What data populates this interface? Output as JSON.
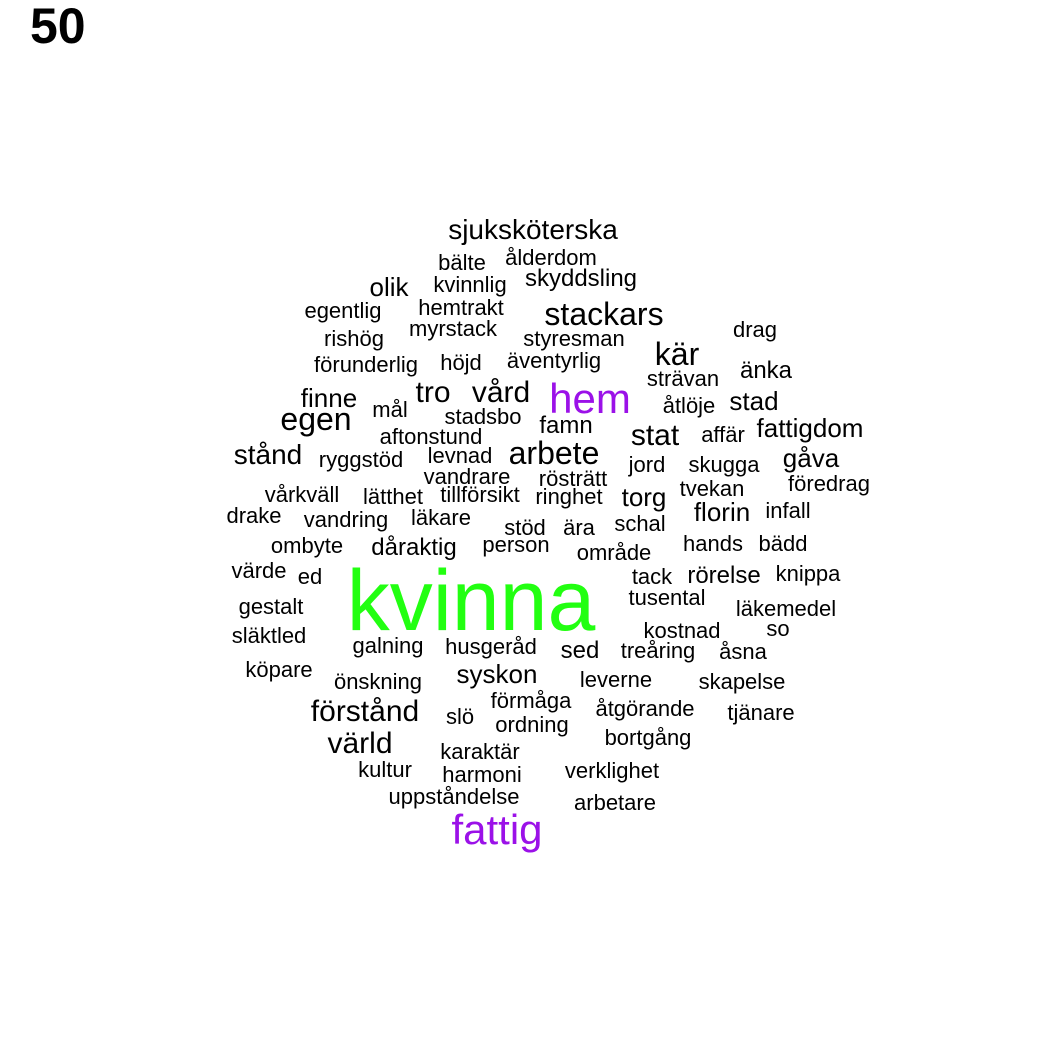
{
  "title": "50",
  "colors": {
    "highlight_green": "#22ff11",
    "highlight_purple": "#9b11e8",
    "default": "#000000"
  },
  "words": [
    {
      "text": "sjuksköterska",
      "size": "m"
    },
    {
      "text": "ålderdom",
      "size": "s"
    },
    {
      "text": "bälte",
      "size": "s"
    },
    {
      "text": "skyddsling",
      "size": "s"
    },
    {
      "text": "olik",
      "size": "m"
    },
    {
      "text": "kvinnlig",
      "size": "s"
    },
    {
      "text": "egentlig",
      "size": "s"
    },
    {
      "text": "hemtrakt",
      "size": "s"
    },
    {
      "text": "stackars",
      "size": "l"
    },
    {
      "text": "drag",
      "size": "s"
    },
    {
      "text": "rishög",
      "size": "s"
    },
    {
      "text": "myrstack",
      "size": "s"
    },
    {
      "text": "styresman",
      "size": "s"
    },
    {
      "text": "kär",
      "size": "l"
    },
    {
      "text": "förunderlig",
      "size": "s"
    },
    {
      "text": "höjd",
      "size": "s"
    },
    {
      "text": "äventyrlig",
      "size": "s"
    },
    {
      "text": "änka",
      "size": "m"
    },
    {
      "text": "strävan",
      "size": "s"
    },
    {
      "text": "finne",
      "size": "m"
    },
    {
      "text": "tro",
      "size": "l"
    },
    {
      "text": "vård",
      "size": "l"
    },
    {
      "text": "hem",
      "size": "xl",
      "color": "purple"
    },
    {
      "text": "stad",
      "size": "m"
    },
    {
      "text": "mål",
      "size": "s"
    },
    {
      "text": "åtlöje",
      "size": "s"
    },
    {
      "text": "egen",
      "size": "l"
    },
    {
      "text": "stadsbo",
      "size": "s"
    },
    {
      "text": "famn",
      "size": "m"
    },
    {
      "text": "fattigdom",
      "size": "m"
    },
    {
      "text": "aftonstund",
      "size": "s"
    },
    {
      "text": "stat",
      "size": "l"
    },
    {
      "text": "affär",
      "size": "s"
    },
    {
      "text": "arbete",
      "size": "l"
    },
    {
      "text": "stånd",
      "size": "m"
    },
    {
      "text": "ryggstöd",
      "size": "s"
    },
    {
      "text": "levnad",
      "size": "s"
    },
    {
      "text": "gåva",
      "size": "m"
    },
    {
      "text": "jord",
      "size": "s"
    },
    {
      "text": "skugga",
      "size": "s"
    },
    {
      "text": "vandrare",
      "size": "s"
    },
    {
      "text": "rösträtt",
      "size": "s"
    },
    {
      "text": "föredrag",
      "size": "s"
    },
    {
      "text": "vårkväll",
      "size": "s"
    },
    {
      "text": "lätthet",
      "size": "s"
    },
    {
      "text": "tillförsikt",
      "size": "s"
    },
    {
      "text": "ringhet",
      "size": "s"
    },
    {
      "text": "torg",
      "size": "m"
    },
    {
      "text": "tvekan",
      "size": "s"
    },
    {
      "text": "drake",
      "size": "s"
    },
    {
      "text": "florin",
      "size": "m"
    },
    {
      "text": "infall",
      "size": "s"
    },
    {
      "text": "vandring",
      "size": "s"
    },
    {
      "text": "läkare",
      "size": "s"
    },
    {
      "text": "stöd",
      "size": "s"
    },
    {
      "text": "ära",
      "size": "s"
    },
    {
      "text": "schal",
      "size": "s"
    },
    {
      "text": "ombyte",
      "size": "s"
    },
    {
      "text": "dåraktig",
      "size": "s"
    },
    {
      "text": "person",
      "size": "s"
    },
    {
      "text": "hands",
      "size": "s"
    },
    {
      "text": "bädd",
      "size": "s"
    },
    {
      "text": "område",
      "size": "s"
    },
    {
      "text": "värde",
      "size": "s"
    },
    {
      "text": "ed",
      "size": "s"
    },
    {
      "text": "kvinna",
      "size": "xxl",
      "color": "green"
    },
    {
      "text": "tack",
      "size": "s"
    },
    {
      "text": "rörelse",
      "size": "m"
    },
    {
      "text": "knippa",
      "size": "s"
    },
    {
      "text": "gestalt",
      "size": "s"
    },
    {
      "text": "tusental",
      "size": "s"
    },
    {
      "text": "läkemedel",
      "size": "s"
    },
    {
      "text": "släktled",
      "size": "s"
    },
    {
      "text": "kostnad",
      "size": "s"
    },
    {
      "text": "so",
      "size": "s"
    },
    {
      "text": "galning",
      "size": "s"
    },
    {
      "text": "husgeråd",
      "size": "s"
    },
    {
      "text": "sed",
      "size": "m"
    },
    {
      "text": "treåring",
      "size": "s"
    },
    {
      "text": "åsna",
      "size": "s"
    },
    {
      "text": "köpare",
      "size": "s"
    },
    {
      "text": "syskon",
      "size": "m"
    },
    {
      "text": "önskning",
      "size": "s"
    },
    {
      "text": "leverne",
      "size": "s"
    },
    {
      "text": "skapelse",
      "size": "s"
    },
    {
      "text": "förmåga",
      "size": "s"
    },
    {
      "text": "förstånd",
      "size": "l"
    },
    {
      "text": "slö",
      "size": "s"
    },
    {
      "text": "åtgörande",
      "size": "s"
    },
    {
      "text": "tjänare",
      "size": "s"
    },
    {
      "text": "ordning",
      "size": "s"
    },
    {
      "text": "bortgång",
      "size": "s"
    },
    {
      "text": "värld",
      "size": "l"
    },
    {
      "text": "karaktär",
      "size": "s"
    },
    {
      "text": "kultur",
      "size": "s"
    },
    {
      "text": "verklighet",
      "size": "s"
    },
    {
      "text": "harmoni",
      "size": "s"
    },
    {
      "text": "uppståndelse",
      "size": "s"
    },
    {
      "text": "arbetare",
      "size": "s"
    },
    {
      "text": "fattig",
      "size": "xl",
      "color": "purple"
    }
  ]
}
